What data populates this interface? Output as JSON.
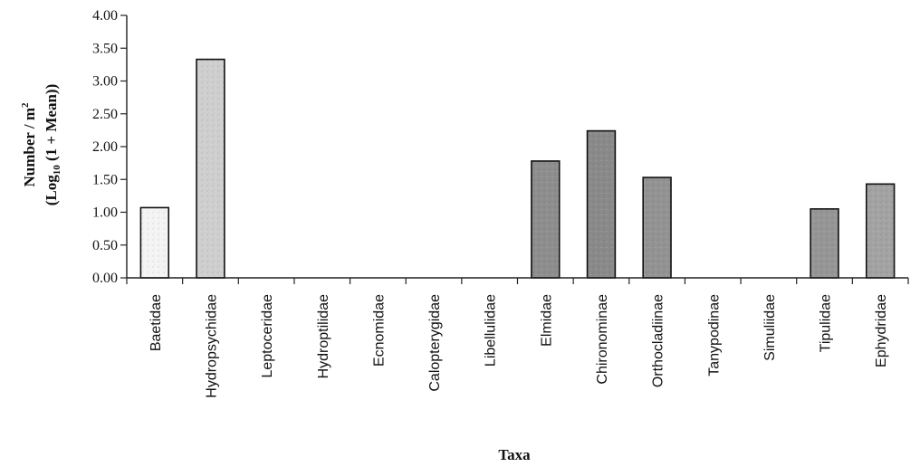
{
  "chart_data": {
    "type": "bar",
    "categories": [
      "Baetidae",
      "Hydropsychidae",
      "Leptoceridae",
      "Hydroptilidae",
      "Ecnomidae",
      "Calopterygidae",
      "Libellulidae",
      "Elmidae",
      "Chironominae",
      "Orthocladiinae",
      "Tanypodinae",
      "Simuliidae",
      "Tipulidae",
      "Ephydridae"
    ],
    "values": [
      1.07,
      3.33,
      0,
      0,
      0,
      0,
      0,
      1.78,
      2.24,
      1.53,
      0,
      0,
      1.05,
      1.43
    ],
    "bar_fills": [
      "#f4f4f4",
      "#cfcfcf",
      "#ffffff",
      "#ffffff",
      "#ffffff",
      "#ffffff",
      "#ffffff",
      "#8e8e8e",
      "#8a8a8a",
      "#939393",
      "#ffffff",
      "#ffffff",
      "#969696",
      "#a3a3a3"
    ],
    "yticks": [
      "0.00",
      "0.50",
      "1.00",
      "1.50",
      "2.00",
      "2.50",
      "3.00",
      "3.50",
      "4.00"
    ],
    "ylim": [
      0,
      4
    ],
    "xlabel": "Taxa",
    "ylabel": {
      "line1_main": "Number / m",
      "line1_sup": "2",
      "line2_open": "(Log",
      "line2_sub": "10",
      "line2_rest": " (1 + Mean))"
    },
    "grid": false,
    "legend": "none"
  }
}
